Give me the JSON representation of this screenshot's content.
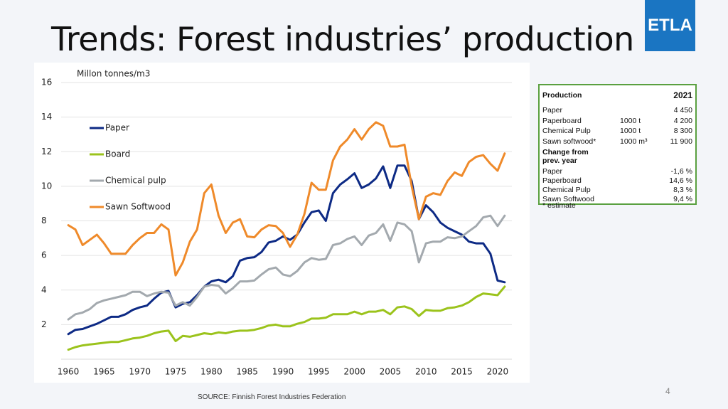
{
  "slide": {
    "title": "Trends: Forest industries’ production",
    "logo": "ETLA",
    "page_number": "4",
    "source": "SOURCE: Finnish Forest Industries Federation"
  },
  "chart_data": {
    "type": "line",
    "y_axis_label": "Millon tonnes/m3",
    "x": [
      1960,
      1961,
      1962,
      1963,
      1964,
      1965,
      1966,
      1967,
      1968,
      1969,
      1970,
      1971,
      1972,
      1973,
      1974,
      1975,
      1976,
      1977,
      1978,
      1979,
      1980,
      1981,
      1982,
      1983,
      1984,
      1985,
      1986,
      1987,
      1988,
      1989,
      1990,
      1991,
      1992,
      1993,
      1994,
      1995,
      1996,
      1997,
      1998,
      1999,
      2000,
      2001,
      2002,
      2003,
      2004,
      2005,
      2006,
      2007,
      2008,
      2009,
      2010,
      2011,
      2012,
      2013,
      2014,
      2015,
      2016,
      2017,
      2018,
      2019,
      2020,
      2021
    ],
    "series": [
      {
        "name": "Paper",
        "color": "#0d2a85",
        "values": [
          1.45,
          1.7,
          1.75,
          1.9,
          2.05,
          2.25,
          2.45,
          2.45,
          2.6,
          2.85,
          3.0,
          3.1,
          3.5,
          3.85,
          3.95,
          3.0,
          3.2,
          3.3,
          3.7,
          4.2,
          4.5,
          4.6,
          4.45,
          4.8,
          5.7,
          5.85,
          5.9,
          6.2,
          6.75,
          6.85,
          7.1,
          6.9,
          7.2,
          7.9,
          8.5,
          8.6,
          8.0,
          9.6,
          10.1,
          10.4,
          10.75,
          9.9,
          10.1,
          10.45,
          11.15,
          9.9,
          11.2,
          11.2,
          10.3,
          8.1,
          8.9,
          8.5,
          7.9,
          7.6,
          7.4,
          7.2,
          6.8,
          6.7,
          6.7,
          6.1,
          4.55,
          4.45
        ]
      },
      {
        "name": "Board",
        "color": "#9bc31c",
        "values": [
          0.55,
          0.7,
          0.8,
          0.85,
          0.9,
          0.95,
          1.0,
          1.0,
          1.1,
          1.2,
          1.25,
          1.35,
          1.5,
          1.6,
          1.65,
          1.05,
          1.35,
          1.3,
          1.4,
          1.5,
          1.45,
          1.55,
          1.5,
          1.6,
          1.65,
          1.65,
          1.7,
          1.8,
          1.95,
          2.0,
          1.9,
          1.9,
          2.05,
          2.15,
          2.35,
          2.35,
          2.4,
          2.6,
          2.6,
          2.6,
          2.75,
          2.6,
          2.75,
          2.75,
          2.85,
          2.6,
          3.0,
          3.05,
          2.9,
          2.5,
          2.85,
          2.8,
          2.8,
          2.95,
          3.0,
          3.1,
          3.3,
          3.6,
          3.8,
          3.75,
          3.7,
          4.2
        ]
      },
      {
        "name": "Chemical pulp",
        "color": "#a3a9ae",
        "values": [
          2.3,
          2.6,
          2.7,
          2.9,
          3.25,
          3.4,
          3.5,
          3.6,
          3.7,
          3.9,
          3.9,
          3.65,
          3.8,
          3.9,
          3.85,
          3.1,
          3.3,
          3.1,
          3.6,
          4.2,
          4.3,
          4.25,
          3.8,
          4.1,
          4.5,
          4.5,
          4.55,
          4.9,
          5.2,
          5.3,
          4.9,
          4.8,
          5.1,
          5.6,
          5.85,
          5.75,
          5.8,
          6.6,
          6.7,
          6.95,
          7.1,
          6.6,
          7.15,
          7.3,
          7.8,
          6.85,
          7.9,
          7.8,
          7.4,
          5.6,
          6.7,
          6.8,
          6.8,
          7.05,
          7.0,
          7.1,
          7.4,
          7.7,
          8.2,
          8.3,
          7.7,
          8.3
        ]
      },
      {
        "name": "Sawn Softwood",
        "color": "#ef8a2a",
        "values": [
          7.75,
          7.5,
          6.6,
          6.9,
          7.2,
          6.7,
          6.1,
          6.1,
          6.1,
          6.6,
          7.0,
          7.3,
          7.3,
          7.8,
          7.5,
          4.85,
          5.6,
          6.8,
          7.5,
          9.6,
          10.1,
          8.3,
          7.3,
          7.9,
          8.1,
          7.1,
          7.05,
          7.5,
          7.75,
          7.7,
          7.3,
          6.5,
          7.2,
          8.4,
          10.2,
          9.8,
          9.8,
          11.5,
          12.3,
          12.7,
          13.3,
          12.7,
          13.3,
          13.7,
          13.5,
          12.3,
          12.3,
          12.4,
          10.0,
          8.1,
          9.4,
          9.6,
          9.5,
          10.3,
          10.8,
          10.6,
          11.4,
          11.7,
          11.8,
          11.3,
          10.9,
          11.9
        ]
      }
    ],
    "xlim": [
      1959,
      2022
    ],
    "xticks": [
      1960,
      1965,
      1970,
      1975,
      1980,
      1985,
      1990,
      1995,
      2000,
      2005,
      2010,
      2015,
      2020
    ],
    "ylim": [
      0,
      16
    ],
    "yticks": [
      2,
      4,
      6,
      8,
      10,
      12,
      14,
      16
    ],
    "grid": true,
    "legend": "upper left"
  },
  "table": {
    "header": {
      "label": "Production",
      "year": "2021"
    },
    "rows": [
      {
        "label": "Paper",
        "value": "4 450"
      },
      {
        "label": "Paperboard",
        "unit": "1000 t",
        "value": "4 200"
      },
      {
        "label": "Chemical Pulp",
        "unit": "1000 t",
        "value": "8 300"
      },
      {
        "label": "Sawn softwood*",
        "unit": "1000 m³",
        "value": "11 900"
      }
    ],
    "change_heading": "Change from prev. year",
    "changes": [
      {
        "label": "Paper",
        "value": "-1,6 %"
      },
      {
        "label": "Paperboard",
        "value": "14,6 %"
      },
      {
        "label": "Chemical Pulp",
        "value": "8,3 %"
      },
      {
        "label": "Sawn Softwood",
        "value": "9,4 %"
      }
    ],
    "footnote": "* estimate"
  }
}
